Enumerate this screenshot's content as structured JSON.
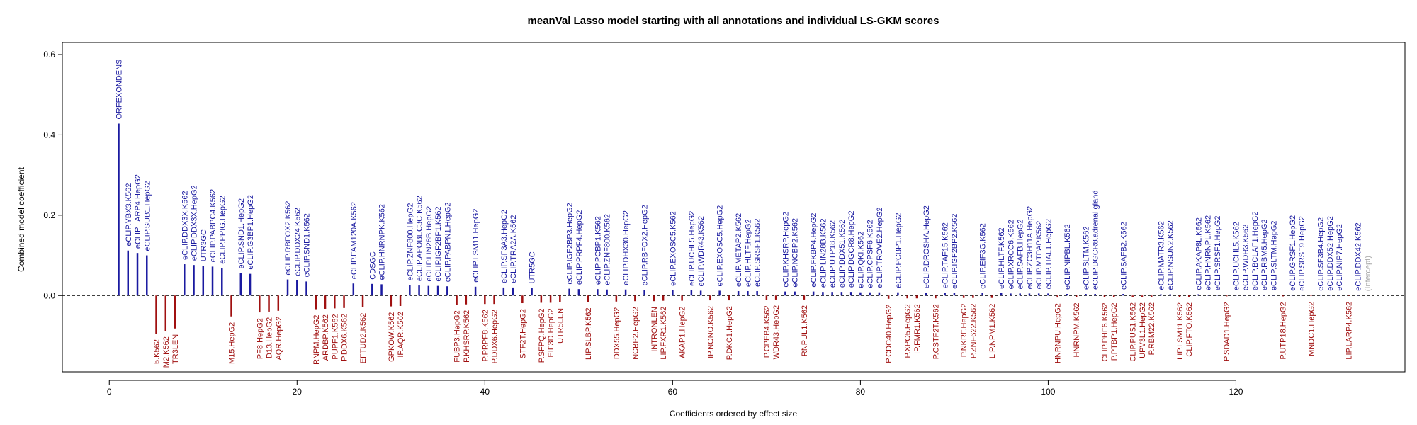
{
  "chart_data": {
    "type": "bar",
    "title": "meanVal Lasso model starting with all annotations and individual LS-GKM scores",
    "xlabel": "Coefficients ordered by effect size",
    "ylabel": "Combined model coefficient",
    "xlim": [
      -5,
      138
    ],
    "ylim": [
      -0.19,
      0.63
    ],
    "xticks": [
      0,
      20,
      40,
      60,
      80,
      100,
      120
    ],
    "yticks": [
      0.0,
      0.2,
      0.4,
      0.6
    ],
    "ytick_labels": [
      "0.0",
      "0.2",
      "0.4",
      "0.6"
    ],
    "reference_line": 0.0,
    "colors": {
      "positive": "#1a1aa0",
      "negative": "#a01010",
      "intercept": "#aaaaaa",
      "axis": "#000000",
      "reference": "#000000"
    },
    "series": [
      {
        "x": 1,
        "value": 0.428,
        "label": "ORFEXONDENS"
      },
      {
        "x": 2,
        "value": 0.112,
        "label": "eCLIP.YBX3.K562"
      },
      {
        "x": 3,
        "value": 0.106,
        "label": "eCLIP.LARP4.HepG2"
      },
      {
        "x": 4,
        "value": 0.1,
        "label": "eCLIP.SUB1.HepG2"
      },
      {
        "x": 5,
        "value": -0.095,
        "label": "5.K562"
      },
      {
        "x": 6,
        "value": -0.088,
        "label": "M2.K562"
      },
      {
        "x": 7,
        "value": -0.082,
        "label": "TR3LEN"
      },
      {
        "x": 8,
        "value": 0.078,
        "label": "eCLIP.DDX3X.K562"
      },
      {
        "x": 9,
        "value": 0.076,
        "label": "eCLIP.DDX3X.HepG2"
      },
      {
        "x": 10,
        "value": 0.074,
        "label": "UTR3GC"
      },
      {
        "x": 11,
        "value": 0.072,
        "label": "eCLIP.PABPC4.K562"
      },
      {
        "x": 12,
        "value": 0.068,
        "label": "eCLIP.PPIG.HepG2"
      },
      {
        "x": 13,
        "value": -0.052,
        "label": "M15.HepG2"
      },
      {
        "x": 14,
        "value": 0.056,
        "label": "eCLIP.SND1.HepG2"
      },
      {
        "x": 15,
        "value": 0.054,
        "label": "eCLIP.G3BP1.HepG2"
      },
      {
        "x": 16,
        "value": -0.042,
        "label": "PF8.HepG2"
      },
      {
        "x": 17,
        "value": -0.04,
        "label": "D13.HepG2"
      },
      {
        "x": 18,
        "value": -0.038,
        "label": "AQR.HepG2"
      },
      {
        "x": 19,
        "value": 0.04,
        "label": "eCLIP.RBFOX2.K562"
      },
      {
        "x": 20,
        "value": 0.038,
        "label": "eCLIP.DDX24.K562"
      },
      {
        "x": 21,
        "value": 0.035,
        "label": "eCLIP.SND1.K562"
      },
      {
        "x": 22,
        "value": -0.034,
        "label": "RNPM.HepG2"
      },
      {
        "x": 23,
        "value": -0.033,
        "label": "ARDBP.K562"
      },
      {
        "x": 24,
        "value": -0.032,
        "label": "PUPF1.K562"
      },
      {
        "x": 25,
        "value": -0.031,
        "label": "P.DDX6.K562"
      },
      {
        "x": 26,
        "value": 0.03,
        "label": "eCLIP.FAM120A.K562"
      },
      {
        "x": 27,
        "value": -0.029,
        "label": "EFTUD2.K562"
      },
      {
        "x": 28,
        "value": 0.029,
        "label": "CDSGC"
      },
      {
        "x": 29,
        "value": 0.028,
        "label": "eCLIP.HNRNPK.K562"
      },
      {
        "x": 30,
        "value": -0.027,
        "label": "GPKOW.K562"
      },
      {
        "x": 31,
        "value": -0.026,
        "label": "IP.AQR.K562"
      },
      {
        "x": 32,
        "value": 0.026,
        "label": "eCLIP.ZNF800.HepG2"
      },
      {
        "x": 33,
        "value": 0.025,
        "label": "eCLIP.APOBEC3C.K562"
      },
      {
        "x": 34,
        "value": 0.024,
        "label": "eCLIP.LIN28B.HepG2"
      },
      {
        "x": 35,
        "value": 0.024,
        "label": "eCLIP.IGF2BP1.K562"
      },
      {
        "x": 36,
        "value": 0.023,
        "label": "eCLIP.PABPN1.HepG2"
      },
      {
        "x": 37,
        "value": -0.023,
        "label": "FUBP3.HepG2"
      },
      {
        "x": 38,
        "value": -0.022,
        "label": "P.KHSRP.K562"
      },
      {
        "x": 39,
        "value": 0.022,
        "label": "eCLIP.LSM11.HepG2"
      },
      {
        "x": 40,
        "value": -0.021,
        "label": "P.PRPF8.K562"
      },
      {
        "x": 41,
        "value": -0.021,
        "label": "P.DDX6.HepG2"
      },
      {
        "x": 42,
        "value": 0.02,
        "label": "eCLIP.SF3A3.HepG2"
      },
      {
        "x": 43,
        "value": 0.02,
        "label": "eCLIP.TRA2A.K562"
      },
      {
        "x": 44,
        "value": -0.019,
        "label": "STF2T.HepG2"
      },
      {
        "x": 45,
        "value": 0.019,
        "label": "UTR5GC"
      },
      {
        "x": 46,
        "value": -0.018,
        "label": "P.SFPQ.HepG2"
      },
      {
        "x": 47,
        "value": -0.018,
        "label": "EIF3D.HepG2"
      },
      {
        "x": 48,
        "value": -0.017,
        "label": "UTR5LEN"
      },
      {
        "x": 49,
        "value": 0.017,
        "label": "eCLIP.IGF2BP3.HepG2"
      },
      {
        "x": 50,
        "value": 0.016,
        "label": "eCLIP.PRPF4.HepG2"
      },
      {
        "x": 51,
        "value": -0.016,
        "label": "LIP.SLBP.K562"
      },
      {
        "x": 52,
        "value": 0.016,
        "label": "eCLIP.PCBP1.K562"
      },
      {
        "x": 53,
        "value": 0.015,
        "label": "eCLIP.ZNF800.K562"
      },
      {
        "x": 54,
        "value": -0.015,
        "label": "DDX55.HepG2"
      },
      {
        "x": 55,
        "value": 0.015,
        "label": "eCLIP.DHX30.HepG2"
      },
      {
        "x": 56,
        "value": -0.014,
        "label": "NCBP2.HepG2"
      },
      {
        "x": 57,
        "value": 0.014,
        "label": "eCLIP.RBFOX2.HepG2"
      },
      {
        "x": 58,
        "value": -0.014,
        "label": "INTRONLEN"
      },
      {
        "x": 59,
        "value": -0.013,
        "label": "LIP.FXR1.K562"
      },
      {
        "x": 60,
        "value": 0.013,
        "label": "eCLIP.EXOSC5.K562"
      },
      {
        "x": 61,
        "value": -0.013,
        "label": "AKAP1.HepG2"
      },
      {
        "x": 62,
        "value": 0.013,
        "label": "eCLIP.UCHL5.HepG2"
      },
      {
        "x": 63,
        "value": 0.012,
        "label": "eCLIP.WDR43.K562"
      },
      {
        "x": 64,
        "value": -0.012,
        "label": "IP.NONO.K562"
      },
      {
        "x": 65,
        "value": 0.012,
        "label": "eCLIP.EXOSC5.HepG2"
      },
      {
        "x": 66,
        "value": -0.012,
        "label": "P.DKC1.HepG2"
      },
      {
        "x": 67,
        "value": 0.011,
        "label": "eCLIP.METAP2.K562"
      },
      {
        "x": 68,
        "value": 0.011,
        "label": "eCLIP.HLTF.HepG2"
      },
      {
        "x": 69,
        "value": 0.011,
        "label": "eCLIP.SRSF1.K562"
      },
      {
        "x": 70,
        "value": -0.011,
        "label": "P.CPEB4.K562"
      },
      {
        "x": 71,
        "value": -0.01,
        "label": "WDR43.HepG2"
      },
      {
        "x": 72,
        "value": 0.01,
        "label": "eCLIP.KHSRP.HepG2"
      },
      {
        "x": 73,
        "value": 0.01,
        "label": "eCLIP.NCBP2.K562"
      },
      {
        "x": 74,
        "value": -0.01,
        "label": "RNPUL1.K562"
      },
      {
        "x": 75,
        "value": 0.01,
        "label": "eCLIP.FKBP4.HepG2"
      },
      {
        "x": 76,
        "value": 0.009,
        "label": "eCLIP.LIN28B.K562"
      },
      {
        "x": 77,
        "value": 0.009,
        "label": "eCLIP.UTP18.K562"
      },
      {
        "x": 78,
        "value": 0.009,
        "label": "eCLIP.DDX51.K562"
      },
      {
        "x": 79,
        "value": 0.009,
        "label": "eCLIP.DGCR8.HepG2"
      },
      {
        "x": 80,
        "value": 0.008,
        "label": "eCLIP.QKI.K562"
      },
      {
        "x": 81,
        "value": 0.008,
        "label": "eCLIP.CPSF6.K562"
      },
      {
        "x": 82,
        "value": 0.008,
        "label": "eCLIP.TROVE2.HepG2"
      },
      {
        "x": 83,
        "value": -0.008,
        "label": "P.CDC40.HepG2"
      },
      {
        "x": 84,
        "value": 0.008,
        "label": "eCLIP.PCBP1.HepG2"
      },
      {
        "x": 85,
        "value": -0.007,
        "label": "P.XPO5.HepG2"
      },
      {
        "x": 86,
        "value": -0.007,
        "label": "IP.FMR1.K562"
      },
      {
        "x": 87,
        "value": 0.007,
        "label": "eCLIP.DROSHA.HepG2"
      },
      {
        "x": 88,
        "value": -0.007,
        "label": "P.CSTF2T.K562"
      },
      {
        "x": 89,
        "value": 0.007,
        "label": "eCLIP.TAF15.K562"
      },
      {
        "x": 90,
        "value": 0.006,
        "label": "eCLIP.IGF2BP2.K562"
      },
      {
        "x": 91,
        "value": -0.006,
        "label": "P.NKRF.HepG2"
      },
      {
        "x": 92,
        "value": -0.006,
        "label": "P.ZNF622.K562"
      },
      {
        "x": 93,
        "value": 0.006,
        "label": "eCLIP.EIF3G.K562"
      },
      {
        "x": 94,
        "value": -0.006,
        "label": "LIP.NPM1.K562"
      },
      {
        "x": 95,
        "value": 0.006,
        "label": "eCLIP.HLTF.K562"
      },
      {
        "x": 96,
        "value": 0.005,
        "label": "eCLIP.XRCC6.K562"
      },
      {
        "x": 97,
        "value": 0.005,
        "label": "eCLIP.SAFB.HepG2"
      },
      {
        "x": 98,
        "value": 0.005,
        "label": "eCLIP.ZC3H11A.HepG2"
      },
      {
        "x": 99,
        "value": 0.005,
        "label": "eCLIP.MTPAP.K562"
      },
      {
        "x": 100,
        "value": 0.005,
        "label": "eCLIP.TIAL1.HepG2"
      },
      {
        "x": 101,
        "value": -0.005,
        "label": "HNRNPU.HepG2"
      },
      {
        "x": 102,
        "value": 0.004,
        "label": "eCLIP.NIPBL.K562"
      },
      {
        "x": 103,
        "value": -0.004,
        "label": "HNRNPM.K562"
      },
      {
        "x": 104,
        "value": 0.004,
        "label": "eCLIP.SLTM.K562"
      },
      {
        "x": 105,
        "value": 0.004,
        "label": "eCLIP.DGCR8.adrenal gland"
      },
      {
        "x": 106,
        "value": -0.004,
        "label": "CLIP.PHF6.K562"
      },
      {
        "x": 107,
        "value": -0.004,
        "label": "P.PTBP1.HepG2"
      },
      {
        "x": 108,
        "value": 0.004,
        "label": "eCLIP.SAFB2.K562"
      },
      {
        "x": 109,
        "value": -0.003,
        "label": "CLIP.PUS1.K562"
      },
      {
        "x": 110,
        "value": -0.003,
        "label": "UPV3L1.HepG2"
      },
      {
        "x": 111,
        "value": -0.003,
        "label": "P.RBM22.K562"
      },
      {
        "x": 112,
        "value": 0.003,
        "label": "eCLIP.MATR3.K562"
      },
      {
        "x": 113,
        "value": 0.003,
        "label": "eCLIP.NSUN2.K562"
      },
      {
        "x": 114,
        "value": -0.003,
        "label": "LIP.LSM11.K562"
      },
      {
        "x": 115,
        "value": -0.003,
        "label": "CLIP.FTO.K562"
      },
      {
        "x": 116,
        "value": 0.003,
        "label": "eCLIP.AKAP8L.K562"
      },
      {
        "x": 117,
        "value": 0.002,
        "label": "eCLIP.HNRNPL.K562"
      },
      {
        "x": 118,
        "value": 0.002,
        "label": "eCLIP.SRSF1.HepG2"
      },
      {
        "x": 119,
        "value": -0.002,
        "label": "P.SDAD1.HepG2"
      },
      {
        "x": 120,
        "value": 0.002,
        "label": "eCLIP.UCHL5.K562"
      },
      {
        "x": 121,
        "value": 0.002,
        "label": "eCLIP.WDR3.K562"
      },
      {
        "x": 122,
        "value": 0.002,
        "label": "eCLIP.BCLAF1.HepG2"
      },
      {
        "x": 123,
        "value": 0.002,
        "label": "eCLIP.RBM5.HepG2"
      },
      {
        "x": 124,
        "value": 0.002,
        "label": "eCLIP.SLTM.HepG2"
      },
      {
        "x": 125,
        "value": -0.002,
        "label": "P.UTP18.HepG2"
      },
      {
        "x": 126,
        "value": 0.001,
        "label": "eCLIP.GRSF1.HepG2"
      },
      {
        "x": 127,
        "value": 0.001,
        "label": "eCLIP.SRSF9.HepG2"
      },
      {
        "x": 128,
        "value": -0.001,
        "label": "MNDC1.HepG2"
      },
      {
        "x": 129,
        "value": 0.001,
        "label": "eCLIP.SF3B4.HepG2"
      },
      {
        "x": 130,
        "value": 0.001,
        "label": "eCLIP.DDX52.HepG2"
      },
      {
        "x": 131,
        "value": 0.001,
        "label": "eCLIP.NIP7.HepG2"
      },
      {
        "x": 132,
        "value": -0.001,
        "label": "LIP.LARP4.K562"
      },
      {
        "x": 133,
        "value": 0.001,
        "label": "eCLIP.DDX42.K562"
      },
      {
        "x": 134,
        "value": 0.0,
        "label": "(Intercept)"
      }
    ]
  }
}
